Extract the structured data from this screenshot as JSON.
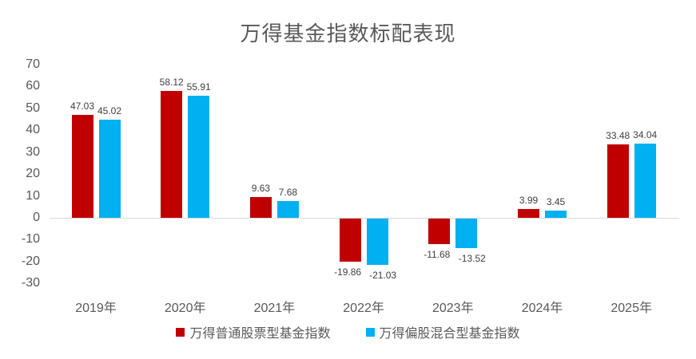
{
  "title": "万得基金指数标配表现",
  "colors": {
    "series1": "#C00000",
    "series2": "#00B0F0",
    "axis_text": "#595959",
    "data_label_text": "#404040",
    "axis_line": "#D9D9D9",
    "title_text": "#595959"
  },
  "chart_data": {
    "type": "bar",
    "title": "万得基金指数标配表现",
    "categories": [
      "2019年",
      "2020年",
      "2021年",
      "2022年",
      "2023年",
      "2024年",
      "2025年"
    ],
    "series": [
      {
        "name": "万得普通股票型基金指数",
        "color": "#C00000",
        "values": [
          47.03,
          58.12,
          9.63,
          -19.86,
          -11.68,
          3.99,
          33.48
        ]
      },
      {
        "name": "万得偏股混合型基金指数",
        "color": "#00B0F0",
        "values": [
          45.02,
          55.91,
          7.68,
          -21.03,
          -13.52,
          3.45,
          34.04
        ]
      }
    ],
    "xlabel": "",
    "ylabel": "",
    "ylim": [
      -30,
      70
    ],
    "ytick_step": 10,
    "yticks": [
      70,
      60,
      50,
      40,
      30,
      20,
      10,
      0,
      -10,
      -20,
      -30
    ],
    "grid": false,
    "data_labels": true,
    "legend_position": "bottom"
  },
  "legend": {
    "items": [
      {
        "label": "万得普通股票型基金指数",
        "color": "#C00000"
      },
      {
        "label": "万得偏股混合型基金指数",
        "color": "#00B0F0"
      }
    ]
  }
}
